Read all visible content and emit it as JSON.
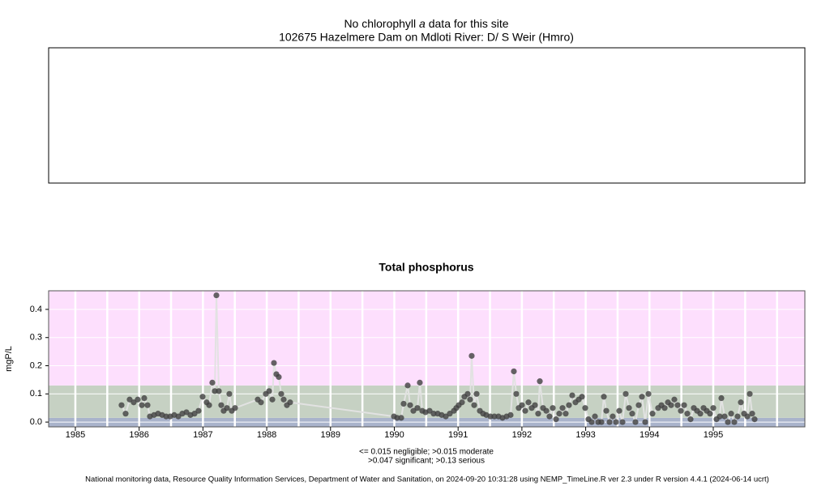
{
  "header": {
    "title_parts": [
      "No chlorophyll",
      "a",
      "data for this site"
    ],
    "subtitle": "102675 Hazelmere Dam on Mdloti River: D/ S Weir (Hmro)"
  },
  "chart_data": {
    "type": "line",
    "title": "Total phosphorus",
    "ylabel": "mgP/L",
    "xlim": [
      1984.581,
      1996.436
    ],
    "xticks": [
      1985,
      1986,
      1987,
      1988,
      1989,
      1990,
      1991,
      1992,
      1993,
      1994,
      1995
    ],
    "xgrid": [
      1985,
      1985.5,
      1986,
      1986.5,
      1987,
      1987.5,
      1988,
      1988.5,
      1989,
      1989.5,
      1990,
      1990.5,
      1991,
      1991.5,
      1992,
      1992.5,
      1993,
      1993.5,
      1994,
      1994.5,
      1995,
      1995.5,
      1996
    ],
    "ylim": [
      -0.017,
      0.466
    ],
    "yticks": [
      {
        "value": 0,
        "label": "0.0"
      },
      0.1,
      0.2,
      0.3,
      0.4
    ],
    "grid": true,
    "bands": [
      {
        "max": 0.015,
        "color": "#a9b3cb"
      },
      {
        "max": 0.13,
        "color": "#c6d1c3"
      },
      {
        "color": "#fddffd"
      }
    ],
    "color": "#404040",
    "line_color": "#e2e2e2",
    "x": [
      1985.724,
      1985.788,
      1985.851,
      1985.915,
      1985.978,
      1986.042,
      1986.08,
      1986.131,
      1986.169,
      1986.233,
      1986.296,
      1986.36,
      1986.423,
      1986.487,
      1986.55,
      1986.614,
      1986.677,
      1986.741,
      1986.804,
      1986.868,
      1986.931,
      1986.995,
      1987.058,
      1987.097,
      1987.147,
      1987.186,
      1987.211,
      1987.249,
      1987.287,
      1987.325,
      1987.376,
      1987.414,
      1987.452,
      1987.503,
      1987.859,
      1987.91,
      1987.986,
      1988.037,
      1988.088,
      1988.113,
      1988.151,
      1988.189,
      1988.227,
      1988.266,
      1988.316,
      1988.367,
      1989.994,
      1990.044,
      1990.108,
      1990.146,
      1990.21,
      1990.248,
      1990.299,
      1990.362,
      1990.4,
      1990.438,
      1990.489,
      1990.553,
      1990.616,
      1990.68,
      1990.743,
      1990.807,
      1990.87,
      1990.934,
      1990.972,
      1991.01,
      1991.061,
      1991.099,
      1991.15,
      1991.188,
      1991.213,
      1991.252,
      1991.29,
      1991.341,
      1991.391,
      1991.442,
      1991.506,
      1991.569,
      1991.633,
      1991.696,
      1991.76,
      1991.823,
      1991.874,
      1991.912,
      1991.95,
      1992.001,
      1992.052,
      1992.103,
      1992.154,
      1992.205,
      1992.255,
      1992.281,
      1992.332,
      1992.383,
      1992.433,
      1992.484,
      1992.535,
      1992.586,
      1992.637,
      1992.687,
      1992.738,
      1992.789,
      1992.84,
      1992.891,
      1992.942,
      1992.992,
      1993.043,
      1993.094,
      1993.145,
      1993.196,
      1993.247,
      1993.285,
      1993.323,
      1993.374,
      1993.424,
      1993.475,
      1993.526,
      1993.577,
      1993.628,
      1993.679,
      1993.729,
      1993.78,
      1993.831,
      1993.882,
      1993.933,
      1993.984,
      1994.047,
      1994.136,
      1994.187,
      1994.238,
      1994.289,
      1994.339,
      1994.39,
      1994.441,
      1994.492,
      1994.543,
      1994.593,
      1994.644,
      1994.695,
      1994.746,
      1994.797,
      1994.848,
      1994.898,
      1994.949,
      1995.0,
      1995.051,
      1995.102,
      1995.127,
      1995.178,
      1995.229,
      1995.28,
      1995.33,
      1995.381,
      1995.432,
      1995.483,
      1995.534,
      1995.572,
      1995.61,
      1995.648
    ],
    "values": [
      0.06,
      0.03,
      0.08,
      0.07,
      0.08,
      0.06,
      0.085,
      0.06,
      0.02,
      0.025,
      0.03,
      0.025,
      0.02,
      0.02,
      0.025,
      0.02,
      0.03,
      0.035,
      0.025,
      0.03,
      0.04,
      0.09,
      0.07,
      0.06,
      0.14,
      0.11,
      0.45,
      0.11,
      0.06,
      0.04,
      0.05,
      0.1,
      0.04,
      0.05,
      0.08,
      0.07,
      0.1,
      0.11,
      0.08,
      0.21,
      0.17,
      0.16,
      0.1,
      0.08,
      0.06,
      0.07,
      0.02,
      0.015,
      0.015,
      0.065,
      0.13,
      0.06,
      0.04,
      0.05,
      0.14,
      0.04,
      0.035,
      0.04,
      0.03,
      0.03,
      0.025,
      0.02,
      0.03,
      0.04,
      0.05,
      0.06,
      0.07,
      0.09,
      0.1,
      0.08,
      0.235,
      0.06,
      0.1,
      0.04,
      0.03,
      0.025,
      0.02,
      0.02,
      0.02,
      0.015,
      0.02,
      0.025,
      0.18,
      0.1,
      0.05,
      0.06,
      0.04,
      0.07,
      0.05,
      0.06,
      0.03,
      0.145,
      0.05,
      0.04,
      0.02,
      0.05,
      0.01,
      0.03,
      0.05,
      0.03,
      0.06,
      0.095,
      0.07,
      0.08,
      0.09,
      0.05,
      0.01,
      0.0,
      0.02,
      0.0,
      0.0,
      0.09,
      0.04,
      0.0,
      0.02,
      0.0,
      0.04,
      0.0,
      0.1,
      0.05,
      0.03,
      0.0,
      0.06,
      0.09,
      0.0,
      0.1,
      0.03,
      0.05,
      0.06,
      0.05,
      0.07,
      0.06,
      0.08,
      0.06,
      0.04,
      0.06,
      0.03,
      0.01,
      0.05,
      0.04,
      0.03,
      0.05,
      0.04,
      0.03,
      0.05,
      0.01,
      0.02,
      0.085,
      0.02,
      0.0,
      0.03,
      0.0,
      0.02,
      0.07,
      0.03,
      0.02,
      0.1,
      0.03,
      0.01
    ],
    "notes": [
      "<= 0.015 negligible; >0.015 moderate",
      ">0.047 significant; >0.13 serious"
    ]
  },
  "footer": "National monitoring data, Resource Quality Information Services, Department of Water and Sanitation, on 2024-09-20 10:31:28 using NEMP_TimeLine.R ver 2.3 under R version 4.4.1 (2024-06-14 ucrt)"
}
